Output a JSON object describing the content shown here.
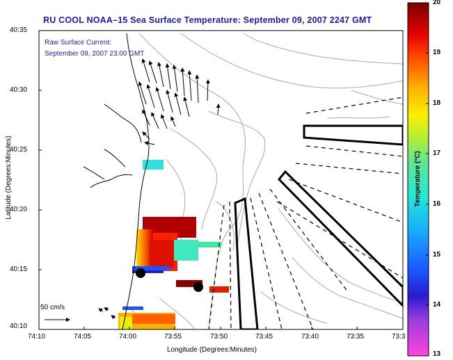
{
  "title": "RU COOL  NOAA–15  Sea Surface Temperature:  September 09, 2007 2247 GMT",
  "current_label": "Raw Surface Current:",
  "current_time": "September 09, 2007 23:00 GMT",
  "ylabel": "Latitude (Degrees:Minutes)",
  "xlabel": "Longitude (Degrees:Minutes)",
  "lat_ticks": [
    "40:35",
    "40:30",
    "40:25",
    "40:20",
    "40:15",
    "40:10"
  ],
  "lon_ticks": [
    "74:10",
    "74:05",
    "74:00",
    "73:55",
    "73:50",
    "73:45",
    "73:40",
    "73:35",
    "73:3"
  ],
  "scale_label": "50 cm/s",
  "colorbar": {
    "label": "Temperature (°C)",
    "ticks": [
      "20",
      "19",
      "18",
      "17",
      "16",
      "15",
      "14",
      "13"
    ],
    "min": 13,
    "max": 20
  },
  "colors": {
    "title": "#1a1ab0",
    "land_outline": "#000000",
    "bathymetry": "#a0a0a0"
  }
}
